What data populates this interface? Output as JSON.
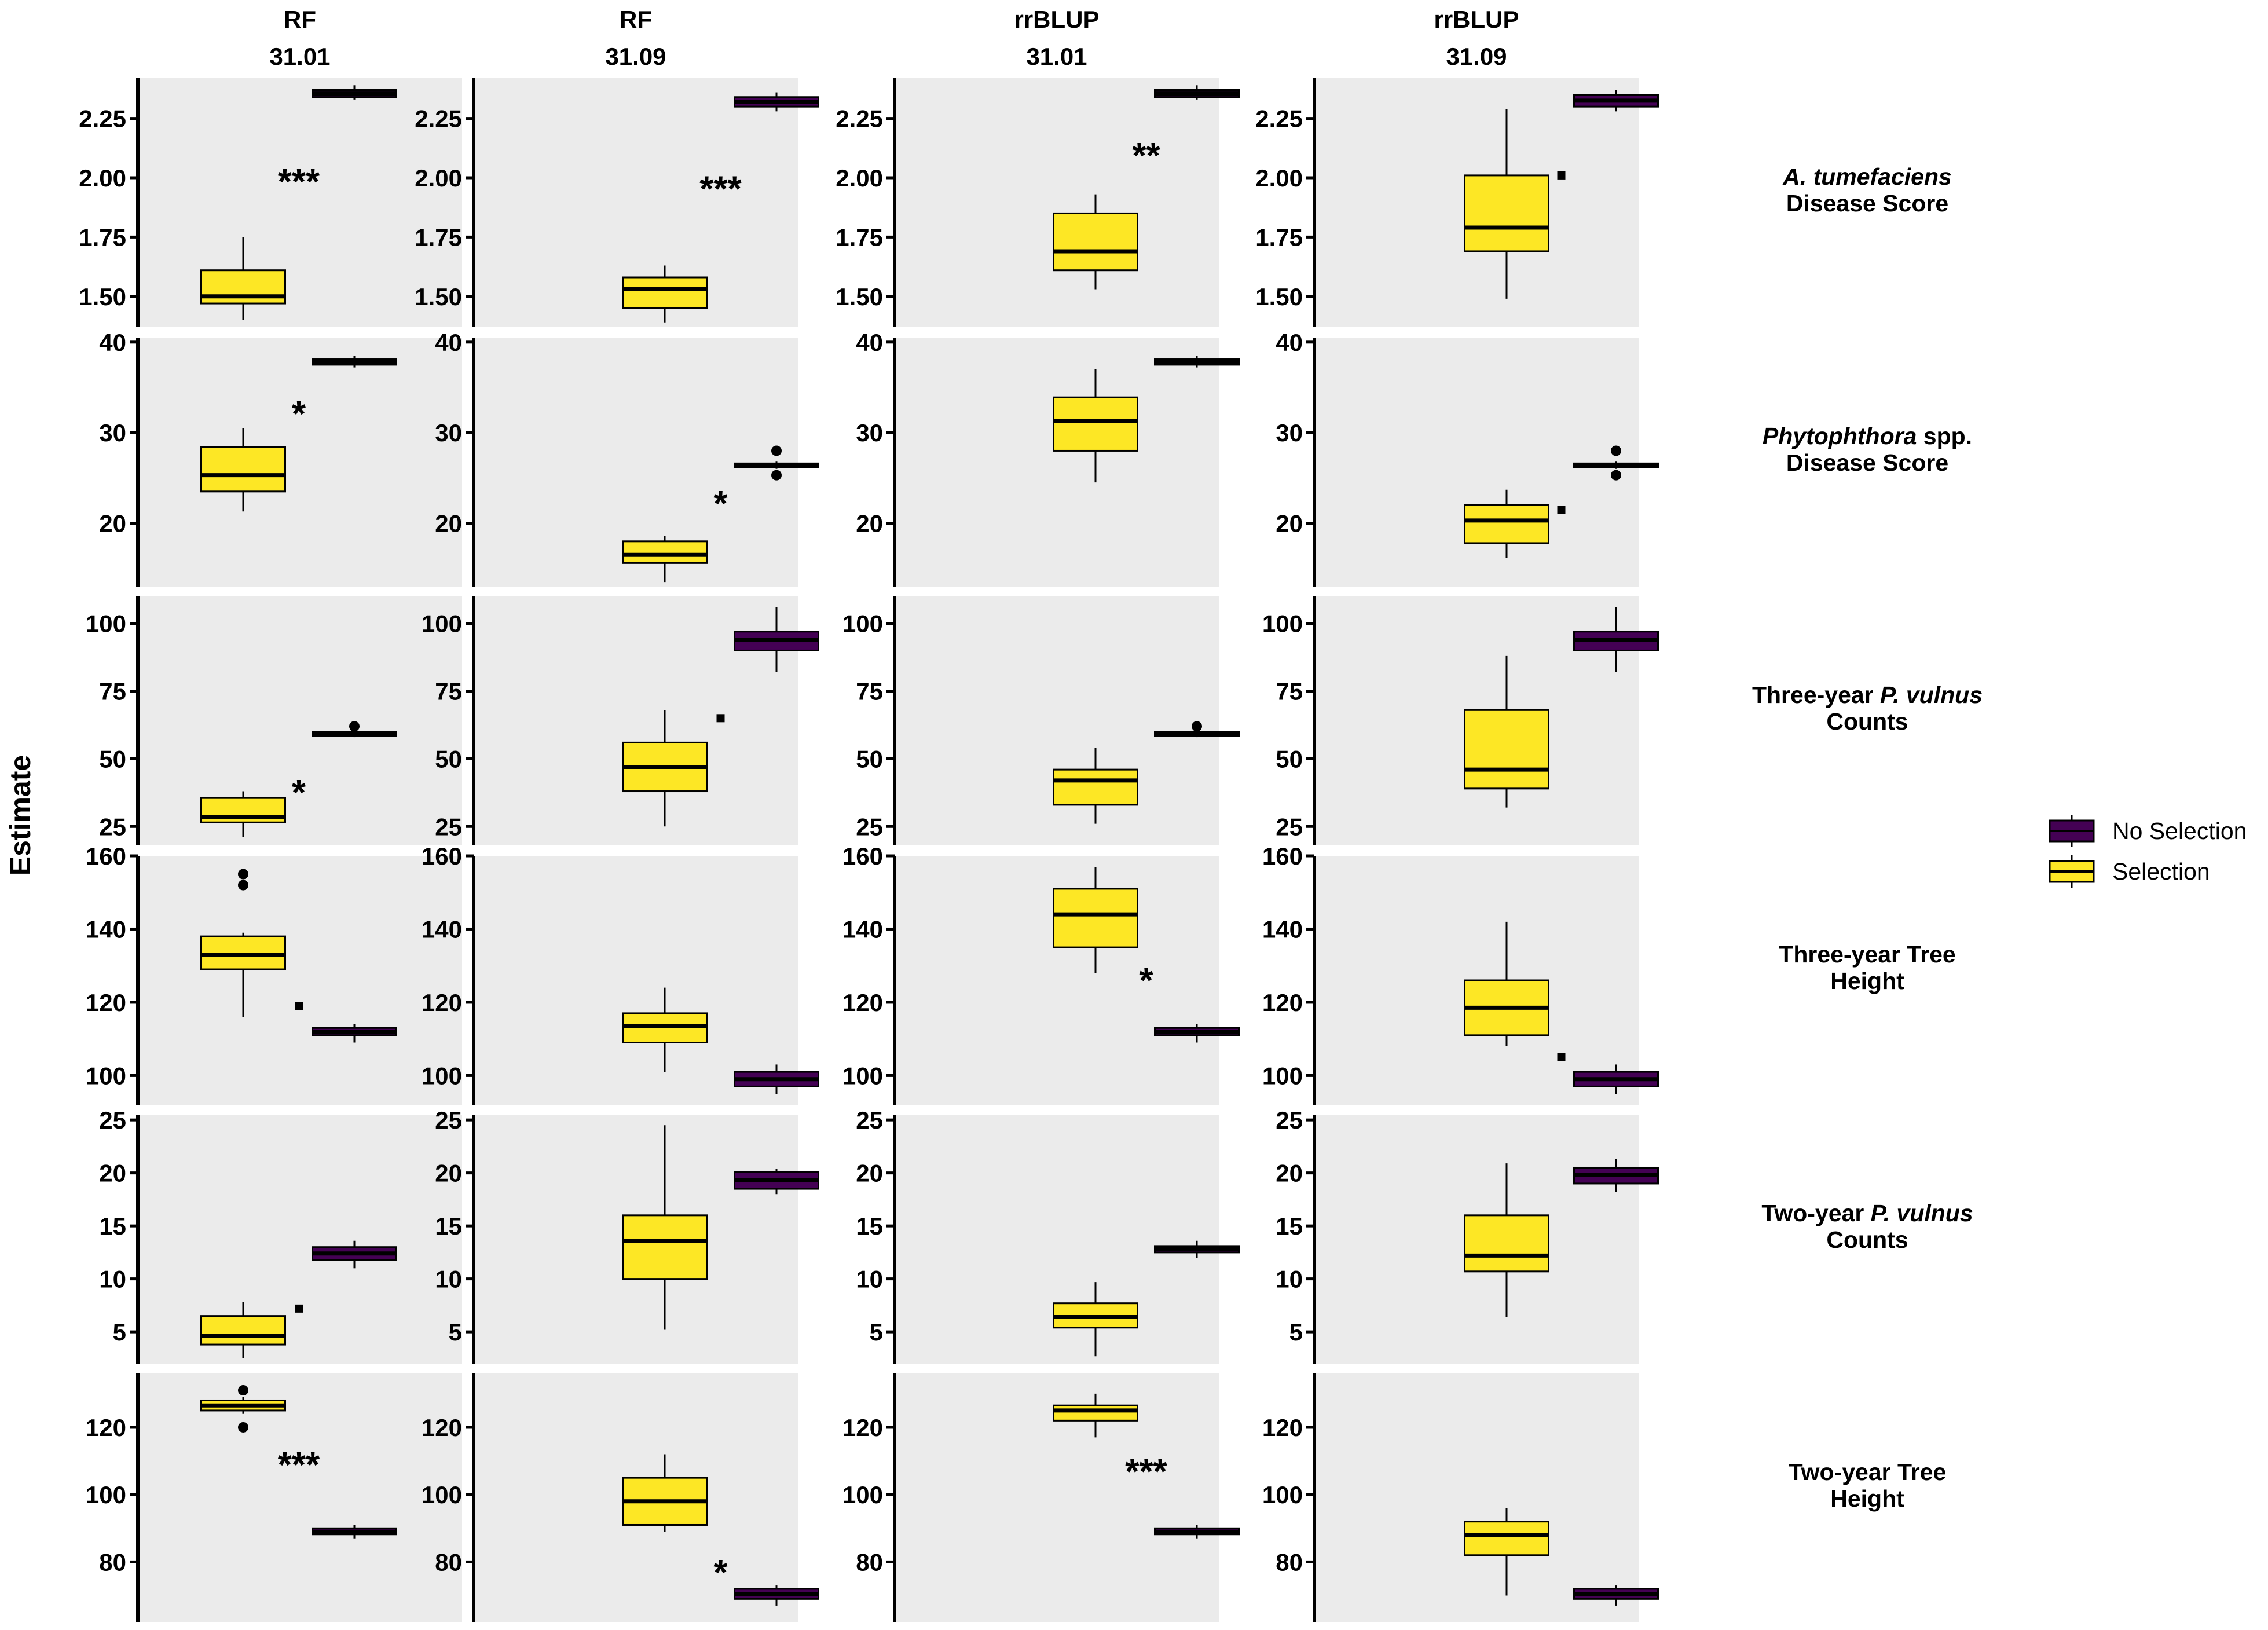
{
  "colors": {
    "selection": "#FDE725",
    "no_selection": "#440154",
    "panel_bg": "#EBEBEB"
  },
  "chart_data": {
    "type": "boxplot",
    "ylabel": "Estimate",
    "legend": {
      "placement": "right",
      "items": [
        {
          "label": "No Selection",
          "color": "#440154"
        },
        {
          "label": "Selection",
          "color": "#FDE725"
        }
      ]
    },
    "columns": [
      {
        "model": "RF",
        "threshold": "31.01"
      },
      {
        "model": "RF",
        "threshold": "31.09"
      },
      {
        "model": "rrBLUP",
        "threshold": "31.01"
      },
      {
        "model": "rrBLUP",
        "threshold": "31.09"
      }
    ],
    "rows": [
      {
        "label_parts": [
          [
            {
              "t": "A. tumefaciens",
              "i": true
            }
          ],
          [
            {
              "t": "Disease Score",
              "i": false
            }
          ]
        ],
        "ylim": [
          1.37,
          2.42
        ],
        "ticks": [
          "1.50",
          "1.75",
          "2.00",
          "2.25"
        ]
      },
      {
        "label_parts": [
          [
            {
              "t": "Phytophthora",
              "i": true
            },
            {
              "t": " spp.",
              "i": false
            }
          ],
          [
            {
              "t": "Disease Score",
              "i": false
            }
          ]
        ],
        "ylim": [
          13,
          40.5
        ],
        "ticks": [
          "20",
          "30",
          "40"
        ]
      },
      {
        "label_parts": [
          [
            {
              "t": "Three-year ",
              "i": false
            },
            {
              "t": "P. vulnus",
              "i": true
            }
          ],
          [
            {
              "t": "Counts",
              "i": false
            }
          ]
        ],
        "ylim": [
          18,
          110
        ],
        "ticks": [
          "25",
          "50",
          "75",
          "100"
        ]
      },
      {
        "label_parts": [
          [
            {
              "t": "Three-year  Tree",
              "i": false
            }
          ],
          [
            {
              "t": "Height",
              "i": false
            }
          ]
        ],
        "ylim": [
          92,
          160
        ],
        "ticks": [
          "100",
          "120",
          "140",
          "160"
        ]
      },
      {
        "label_parts": [
          [
            {
              "t": "Two-year ",
              "i": false
            },
            {
              "t": "P. vulnus",
              "i": true
            }
          ],
          [
            {
              "t": "Counts",
              "i": false
            }
          ]
        ],
        "ylim": [
          2,
          25.5
        ],
        "ticks": [
          "5",
          "10",
          "15",
          "20",
          "25"
        ]
      },
      {
        "label_parts": [
          [
            {
              "t": "Two-year Tree",
              "i": false
            }
          ],
          [
            {
              "t": "Height",
              "i": false
            }
          ]
        ],
        "ylim": [
          62,
          136
        ],
        "ticks": [
          "80",
          "100",
          "120"
        ]
      }
    ],
    "panels": [
      [
        {
          "sig": "***",
          "sig_y": 2.0,
          "boxes": [
            {
              "group": "Selection",
              "min": 1.4,
              "q1": 1.47,
              "median": 1.5,
              "q3": 1.61,
              "max": 1.75,
              "outliers": []
            },
            {
              "group": "No Selection",
              "min": 2.33,
              "q1": 2.34,
              "median": 2.355,
              "q3": 2.37,
              "max": 2.39,
              "outliers": []
            }
          ]
        },
        {
          "sig": "***",
          "sig_y": 1.97,
          "boxes": [
            {
              "group": "Selection",
              "min": 1.39,
              "q1": 1.45,
              "median": 1.53,
              "q3": 1.58,
              "max": 1.63,
              "outliers": []
            },
            {
              "group": "No Selection",
              "min": 2.28,
              "q1": 2.3,
              "median": 2.32,
              "q3": 2.34,
              "max": 2.36,
              "outliers": []
            }
          ]
        },
        {
          "sig": "**",
          "sig_y": 2.11,
          "boxes": [
            {
              "group": "Selection",
              "min": 1.53,
              "q1": 1.61,
              "median": 1.69,
              "q3": 1.85,
              "max": 1.93,
              "outliers": []
            },
            {
              "group": "No Selection",
              "min": 2.33,
              "q1": 2.34,
              "median": 2.355,
              "q3": 2.37,
              "max": 2.39,
              "outliers": []
            }
          ]
        },
        {
          "sig": ".",
          "sig_y": 2.01,
          "boxes": [
            {
              "group": "Selection",
              "min": 1.49,
              "q1": 1.69,
              "median": 1.79,
              "q3": 2.01,
              "max": 2.29,
              "outliers": []
            },
            {
              "group": "No Selection",
              "min": 2.28,
              "q1": 2.3,
              "median": 2.325,
              "q3": 2.35,
              "max": 2.37,
              "outliers": []
            }
          ]
        }
      ],
      [
        {
          "sig": "*",
          "sig_y": 32.5,
          "boxes": [
            {
              "group": "Selection",
              "min": 21.3,
              "q1": 23.5,
              "median": 25.3,
              "q3": 28.4,
              "max": 30.5,
              "outliers": []
            },
            {
              "group": "No Selection",
              "min": 37.2,
              "q1": 37.5,
              "median": 37.8,
              "q3": 38.1,
              "max": 38.5,
              "outliers": []
            }
          ]
        },
        {
          "sig": "*",
          "sig_y": 22.6,
          "boxes": [
            {
              "group": "Selection",
              "min": 13.5,
              "q1": 15.6,
              "median": 16.5,
              "q3": 18.0,
              "max": 18.6,
              "outliers": []
            },
            {
              "group": "No Selection",
              "min": 26.0,
              "q1": 26.2,
              "median": 26.4,
              "q3": 26.6,
              "max": 26.8,
              "outliers": [
                25.3,
                28.0
              ]
            }
          ]
        },
        {
          "sig": "",
          "sig_y": 0,
          "boxes": [
            {
              "group": "Selection",
              "min": 24.5,
              "q1": 28.0,
              "median": 31.3,
              "q3": 33.9,
              "max": 37.0,
              "outliers": []
            },
            {
              "group": "No Selection",
              "min": 37.2,
              "q1": 37.5,
              "median": 37.8,
              "q3": 38.1,
              "max": 38.5,
              "outliers": []
            }
          ]
        },
        {
          "sig": ".",
          "sig_y": 21.5,
          "boxes": [
            {
              "group": "Selection",
              "min": 16.2,
              "q1": 17.8,
              "median": 20.3,
              "q3": 22.0,
              "max": 23.7,
              "outliers": []
            },
            {
              "group": "No Selection",
              "min": 26.0,
              "q1": 26.2,
              "median": 26.4,
              "q3": 26.6,
              "max": 26.8,
              "outliers": [
                25.3,
                28.0
              ]
            }
          ]
        }
      ],
      [
        {
          "sig": "*",
          "sig_y": 39,
          "boxes": [
            {
              "group": "Selection",
              "min": 21,
              "q1": 26.5,
              "median": 28.5,
              "q3": 35.5,
              "max": 38,
              "outliers": []
            },
            {
              "group": "No Selection",
              "min": 58,
              "q1": 58.5,
              "median": 59.3,
              "q3": 60,
              "max": 60.8,
              "outliers": [
                62
              ]
            }
          ]
        },
        {
          "sig": ".",
          "sig_y": 65,
          "boxes": [
            {
              "group": "Selection",
              "min": 25,
              "q1": 38,
              "median": 47,
              "q3": 56,
              "max": 68,
              "outliers": []
            },
            {
              "group": "No Selection",
              "min": 82,
              "q1": 90,
              "median": 94,
              "q3": 97,
              "max": 106,
              "outliers": []
            }
          ]
        },
        {
          "sig": "",
          "sig_y": 0,
          "boxes": [
            {
              "group": "Selection",
              "min": 26,
              "q1": 33,
              "median": 42,
              "q3": 46,
              "max": 54,
              "outliers": []
            },
            {
              "group": "No Selection",
              "min": 58,
              "q1": 58.5,
              "median": 59.3,
              "q3": 60,
              "max": 60.8,
              "outliers": [
                62
              ]
            }
          ]
        },
        {
          "sig": "",
          "sig_y": 0,
          "boxes": [
            {
              "group": "Selection",
              "min": 32,
              "q1": 39,
              "median": 46,
              "q3": 68,
              "max": 88,
              "outliers": []
            },
            {
              "group": "No Selection",
              "min": 82,
              "q1": 90,
              "median": 94,
              "q3": 97,
              "max": 106,
              "outliers": []
            }
          ]
        }
      ],
      [
        {
          "sig": ".",
          "sig_y": 119,
          "boxes": [
            {
              "group": "Selection",
              "min": 116,
              "q1": 129,
              "median": 133,
              "q3": 138,
              "max": 139,
              "outliers": [
                152,
                155
              ]
            },
            {
              "group": "No Selection",
              "min": 109,
              "q1": 111,
              "median": 112,
              "q3": 113,
              "max": 114,
              "outliers": []
            }
          ]
        },
        {
          "sig": "",
          "sig_y": 0,
          "boxes": [
            {
              "group": "Selection",
              "min": 101,
              "q1": 109,
              "median": 113.5,
              "q3": 117,
              "max": 124,
              "outliers": []
            },
            {
              "group": "No Selection",
              "min": 95,
              "q1": 97,
              "median": 99,
              "q3": 101,
              "max": 103,
              "outliers": []
            }
          ]
        },
        {
          "sig": "*",
          "sig_y": 127,
          "boxes": [
            {
              "group": "Selection",
              "min": 128,
              "q1": 135,
              "median": 144,
              "q3": 151,
              "max": 157,
              "outliers": []
            },
            {
              "group": "No Selection",
              "min": 109,
              "q1": 111,
              "median": 112,
              "q3": 113,
              "max": 114,
              "outliers": []
            }
          ]
        },
        {
          "sig": ".",
          "sig_y": 105,
          "boxes": [
            {
              "group": "Selection",
              "min": 108,
              "q1": 111,
              "median": 118.5,
              "q3": 126,
              "max": 142,
              "outliers": []
            },
            {
              "group": "No Selection",
              "min": 95,
              "q1": 97,
              "median": 99,
              "q3": 101,
              "max": 103,
              "outliers": []
            }
          ]
        }
      ],
      [
        {
          "sig": ".",
          "sig_y": 7.2,
          "boxes": [
            {
              "group": "Selection",
              "min": 2.5,
              "q1": 3.8,
              "median": 4.6,
              "q3": 6.5,
              "max": 7.8,
              "outliers": []
            },
            {
              "group": "No Selection",
              "min": 11.0,
              "q1": 11.8,
              "median": 12.4,
              "q3": 13.0,
              "max": 13.6,
              "outliers": []
            }
          ]
        },
        {
          "sig": "",
          "sig_y": 0,
          "boxes": [
            {
              "group": "Selection",
              "min": 5.2,
              "q1": 10.0,
              "median": 13.6,
              "q3": 16.0,
              "max": 24.5,
              "outliers": []
            },
            {
              "group": "No Selection",
              "min": 18.0,
              "q1": 18.5,
              "median": 19.3,
              "q3": 20.1,
              "max": 20.4,
              "outliers": []
            }
          ]
        },
        {
          "sig": "",
          "sig_y": 0,
          "boxes": [
            {
              "group": "Selection",
              "min": 2.7,
              "q1": 5.4,
              "median": 6.4,
              "q3": 7.7,
              "max": 9.7,
              "outliers": []
            },
            {
              "group": "No Selection",
              "min": 12.0,
              "q1": 12.5,
              "median": 12.8,
              "q3": 13.1,
              "max": 13.6,
              "outliers": []
            }
          ]
        },
        {
          "sig": "",
          "sig_y": 0,
          "boxes": [
            {
              "group": "Selection",
              "min": 6.4,
              "q1": 10.7,
              "median": 12.2,
              "q3": 16.0,
              "max": 20.9,
              "outliers": []
            },
            {
              "group": "No Selection",
              "min": 18.2,
              "q1": 19.0,
              "median": 19.8,
              "q3": 20.5,
              "max": 21.3,
              "outliers": []
            }
          ]
        }
      ],
      [
        {
          "sig": "***",
          "sig_y": 110,
          "boxes": [
            {
              "group": "Selection",
              "min": 124,
              "q1": 125,
              "median": 126.5,
              "q3": 128,
              "max": 129,
              "outliers": [
                120,
                131
              ]
            },
            {
              "group": "No Selection",
              "min": 87,
              "q1": 88.2,
              "median": 89,
              "q3": 90,
              "max": 91,
              "outliers": []
            }
          ]
        },
        {
          "sig": "*",
          "sig_y": 78,
          "boxes": [
            {
              "group": "Selection",
              "min": 89,
              "q1": 91,
              "median": 98,
              "q3": 105,
              "max": 112,
              "outliers": []
            },
            {
              "group": "No Selection",
              "min": 67,
              "q1": 69,
              "median": 70.5,
              "q3": 72,
              "max": 73,
              "outliers": []
            }
          ]
        },
        {
          "sig": "***",
          "sig_y": 108,
          "boxes": [
            {
              "group": "Selection",
              "min": 117,
              "q1": 122,
              "median": 125,
              "q3": 126.5,
              "max": 130,
              "outliers": []
            },
            {
              "group": "No Selection",
              "min": 87,
              "q1": 88.2,
              "median": 89,
              "q3": 90,
              "max": 91,
              "outliers": []
            }
          ]
        },
        {
          "sig": "",
          "sig_y": 0,
          "boxes": [
            {
              "group": "Selection",
              "min": 70,
              "q1": 82,
              "median": 88,
              "q3": 92,
              "max": 96,
              "outliers": []
            },
            {
              "group": "No Selection",
              "min": 67,
              "q1": 69,
              "median": 70.5,
              "q3": 72,
              "max": 73,
              "outliers": []
            }
          ]
        }
      ]
    ]
  }
}
